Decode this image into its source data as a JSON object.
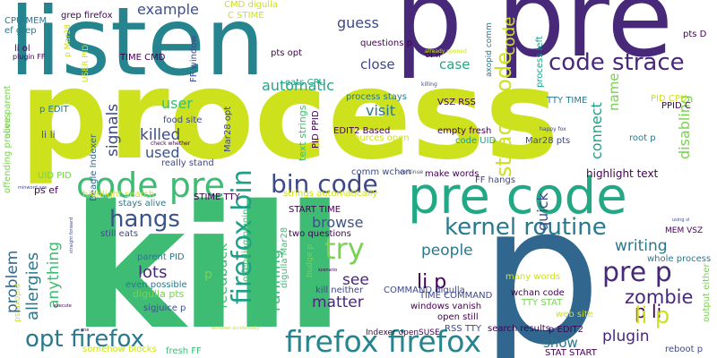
{
  "words": [
    {
      "text": "process",
      "color": "#cde11d"
    },
    {
      "text": "kill",
      "color": "#3fbc73"
    },
    {
      "text": "listen",
      "color": "#25848e"
    },
    {
      "text": "p pre",
      "color": "#482878"
    },
    {
      "text": "pre code",
      "color": "#22a884"
    },
    {
      "text": "p",
      "color": "#31668e"
    },
    {
      "text": "code pre",
      "color": "#3fbc73"
    },
    {
      "text": "firefox firefox",
      "color": "#25848e"
    },
    {
      "text": "opt firefox",
      "color": "#2a788e"
    },
    {
      "text": "code strace",
      "color": "#482878"
    },
    {
      "text": "bin code",
      "color": "#3e4989"
    },
    {
      "text": "firefox bin",
      "color": "#1f9e89"
    },
    {
      "text": "kernel routine",
      "color": "#2a788e"
    },
    {
      "text": "hangs",
      "color": "#3b528b"
    },
    {
      "text": "try",
      "color": "#7ad151"
    },
    {
      "text": "pre p",
      "color": "#482878"
    },
    {
      "text": "strace code",
      "color": "#cde11d"
    },
    {
      "text": "zombie",
      "color": "#482878"
    },
    {
      "text": "li p",
      "color": "#440154"
    },
    {
      "text": "p li",
      "color": "#440154"
    },
    {
      "text": "li p",
      "color": "#cde11d"
    },
    {
      "text": "plugin",
      "color": "#482878"
    },
    {
      "text": "allergies",
      "color": "#2a788e"
    },
    {
      "text": "problem",
      "color": "#31688e"
    },
    {
      "text": "anything",
      "color": "#3fbc73"
    },
    {
      "text": "feedback",
      "color": "#3fbc73"
    },
    {
      "text": "running",
      "color": "#3fbc73"
    },
    {
      "text": "matter",
      "color": "#482878"
    },
    {
      "text": "people",
      "color": "#2a788e"
    },
    {
      "text": "writing",
      "color": "#2a788e"
    },
    {
      "text": "show",
      "color": "#2a788e"
    },
    {
      "text": "lots",
      "color": "#482878"
    },
    {
      "text": "see",
      "color": "#482878"
    },
    {
      "text": "browse",
      "color": "#3b528b"
    },
    {
      "text": "signals",
      "color": "#3e4989"
    },
    {
      "text": "killed",
      "color": "#3e4989"
    },
    {
      "text": "user",
      "color": "#3fbc73"
    },
    {
      "text": "used",
      "color": "#3b528b"
    },
    {
      "text": "visit",
      "color": "#2a788e"
    },
    {
      "text": "close",
      "color": "#3e4989"
    },
    {
      "text": "case",
      "color": "#22a884"
    },
    {
      "text": "quick",
      "color": "#3e4989"
    },
    {
      "text": "connect",
      "color": "#1f9e89"
    },
    {
      "text": "name",
      "color": "#7ad151"
    },
    {
      "text": "disabling",
      "color": "#7ad151"
    },
    {
      "text": "example",
      "color": "#3b528b"
    },
    {
      "text": "automatic",
      "color": "#22a884"
    },
    {
      "text": "guess",
      "color": "#3e4989"
    },
    {
      "text": "code",
      "color": "#cde11d"
    },
    {
      "text": "highlight text",
      "color": "#440154"
    },
    {
      "text": "text strings",
      "color": "#3fbc73"
    },
    {
      "text": "digulla Mar28",
      "color": "#3fbc73"
    },
    {
      "text": "offending plugin",
      "color": "#3fbc73"
    },
    {
      "text": "Mar28 opt",
      "color": "#3e4989"
    },
    {
      "text": "Beagle Indexer",
      "color": "#31688e"
    },
    {
      "text": "offending process",
      "color": "#7ad151"
    },
    {
      "text": "alive parent",
      "color": "#7ad151"
    },
    {
      "text": "p EDIT",
      "color": "#2a788e"
    },
    {
      "text": "li li",
      "color": "#3b528b"
    },
    {
      "text": "UID PID",
      "color": "#7ad151"
    },
    {
      "text": "ps ef",
      "color": "#440154"
    },
    {
      "text": "highlight search",
      "color": "#cde11d"
    },
    {
      "text": "stays alive",
      "color": "#2a788e"
    },
    {
      "text": "still eats",
      "color": "#3e4989"
    },
    {
      "text": "parent PID",
      "color": "#2a788e"
    },
    {
      "text": "even possible",
      "color": "#2a788e"
    },
    {
      "text": "digulla pts",
      "color": "#7ad151"
    },
    {
      "text": "sigjuice p",
      "color": "#3b528b"
    },
    {
      "text": "somehow blocks",
      "color": "#cde11d"
    },
    {
      "text": "fresh FF",
      "color": "#3fbc73"
    },
    {
      "text": "STIME TTY",
      "color": "#440154"
    },
    {
      "text": "strings automatically",
      "color": "#cde11d"
    },
    {
      "text": "START TIME",
      "color": "#440154"
    },
    {
      "text": "two questions",
      "color": "#440154"
    },
    {
      "text": "kill neither",
      "color": "#3e4989"
    },
    {
      "text": "budge p",
      "color": "#7ad151"
    },
    {
      "text": "COMMAND digulla",
      "color": "#3e4989"
    },
    {
      "text": "TIME COMMAND",
      "color": "#3e4989"
    },
    {
      "text": "windows vanish",
      "color": "#440154"
    },
    {
      "text": "open still",
      "color": "#440154"
    },
    {
      "text": "RSS TTY",
      "color": "#3e4989"
    },
    {
      "text": "Indexer openSUSE",
      "color": "#440154"
    },
    {
      "text": "search results",
      "color": "#440154"
    },
    {
      "text": "STAT START",
      "color": "#440154"
    },
    {
      "text": "p EDIT2",
      "color": "#440154"
    },
    {
      "text": "reboot p",
      "color": "#3e4989"
    },
    {
      "text": "output either",
      "color": "#7ad151"
    },
    {
      "text": "whole process",
      "color": "#2a788e"
    },
    {
      "text": "web site",
      "color": "#cde11d"
    },
    {
      "text": "many words",
      "color": "#cde11d"
    },
    {
      "text": "wchan code",
      "color": "#440154"
    },
    {
      "text": "TTY STAT",
      "color": "#7ad151"
    },
    {
      "text": "MEM VSZ",
      "color": "#440154"
    },
    {
      "text": "make words",
      "color": "#440154"
    },
    {
      "text": "FF hangs",
      "color": "#3e4989"
    },
    {
      "text": "comm wchan",
      "color": "#3e4989"
    },
    {
      "text": "empty fresh",
      "color": "#440154"
    },
    {
      "text": "code UID",
      "color": "#1f9e89"
    },
    {
      "text": "Mar28 pts",
      "color": "#3e4989"
    },
    {
      "text": "root p",
      "color": "#2a788e"
    },
    {
      "text": "PPID C",
      "color": "#440154"
    },
    {
      "text": "PID CPU",
      "color": "#cde11d"
    },
    {
      "text": "TTY TIME",
      "color": "#2a788e"
    },
    {
      "text": "VSZ RSS",
      "color": "#440154"
    },
    {
      "text": "resources open",
      "color": "#cde11d"
    },
    {
      "text": "EDIT2 Based",
      "color": "#440154"
    },
    {
      "text": "words really",
      "color": "#cde11d"
    },
    {
      "text": "process stays",
      "color": "#2a788e"
    },
    {
      "text": "eats CPU",
      "color": "#1f9e89"
    },
    {
      "text": "pts opt",
      "color": "#440154"
    },
    {
      "text": "questions p",
      "color": "#440154"
    },
    {
      "text": "ol li",
      "color": "#440154"
    },
    {
      "text": "process left",
      "color": "#1f9e89"
    },
    {
      "text": "axopid comm",
      "color": "#2a788e"
    },
    {
      "text": "pts D",
      "color": "#440154"
    },
    {
      "text": "CPU MEM",
      "color": "#2a788e"
    },
    {
      "text": "ef grep",
      "color": "#2a788e"
    },
    {
      "text": "li ol",
      "color": "#440154"
    },
    {
      "text": "plugin FF",
      "color": "#440154"
    },
    {
      "text": "grep firefox",
      "color": "#440154"
    },
    {
      "text": "CMD digulla",
      "color": "#cde11d"
    },
    {
      "text": "C STIME",
      "color": "#cde11d"
    },
    {
      "text": "TIME CMD",
      "color": "#440154"
    },
    {
      "text": "FF window",
      "color": "#3e4989"
    },
    {
      "text": "USER PID",
      "color": "#cde11d"
    },
    {
      "text": "p Mar28",
      "color": "#cde11d"
    },
    {
      "text": "food site",
      "color": "#3e4989"
    },
    {
      "text": "really stand",
      "color": "#3e4989"
    },
    {
      "text": "PID PPID",
      "color": "#440154"
    },
    {
      "text": "ps axopid",
      "color": "#cde11d"
    },
    {
      "text": "p",
      "color": "#7ad151"
    },
    {
      "text": "happy fox",
      "color": "#3e4989"
    },
    {
      "text": "already opened",
      "color": "#cde11d"
    },
    {
      "text": "killing",
      "color": "#3e4989"
    },
    {
      "text": "check whether",
      "color": "#440154"
    },
    {
      "text": "continue",
      "color": "#3e4989"
    },
    {
      "text": "minword axe",
      "color": "#3e4989"
    },
    {
      "text": "straight forward",
      "color": "#3e4989"
    },
    {
      "text": "scenario",
      "color": "#440154"
    },
    {
      "text": "execute",
      "color": "#440154"
    },
    {
      "text": "one",
      "color": "#440154"
    },
    {
      "text": "using vi",
      "color": "#3e4989"
    },
    {
      "text": "windows accidentally",
      "color": "#cde11d"
    }
  ]
}
